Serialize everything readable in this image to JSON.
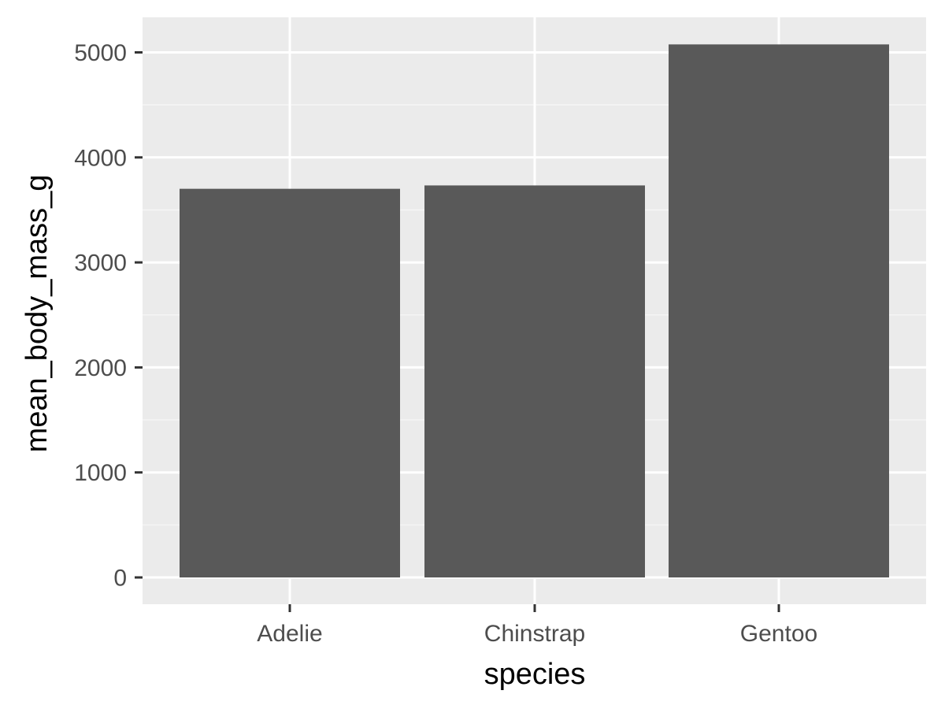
{
  "chart_data": {
    "type": "bar",
    "categories": [
      "Adelie",
      "Chinstrap",
      "Gentoo"
    ],
    "values": [
      3701,
      3733,
      5076
    ],
    "xlabel": "species",
    "ylabel": "mean_body_mass_g",
    "ylim": [
      0,
      5076
    ],
    "yticks": [
      0,
      1000,
      2000,
      3000,
      4000,
      5000
    ],
    "grid": true,
    "legend": "none",
    "colors": {
      "panel": "#ebebeb",
      "bar": "#595959",
      "grid_major": "#ffffff",
      "grid_minor": "#f5f5f5",
      "tick": "#333333",
      "tick_label": "#4d4d4d",
      "axis_title": "#000000"
    }
  }
}
